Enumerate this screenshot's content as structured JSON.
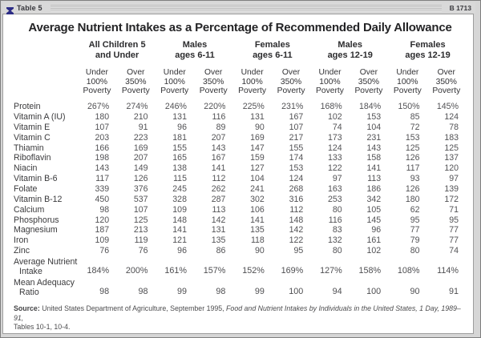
{
  "window": {
    "tab_label": "Table 5",
    "page_ref": "B 1713",
    "logo_color": "#2d2d86"
  },
  "title": "Average Nutrient Intakes as a Percentage of Recommended Daily Allowance",
  "table": {
    "groups": [
      {
        "line1": "All Children 5",
        "line2": "and Under"
      },
      {
        "line1": "Males",
        "line2": "ages 6-11"
      },
      {
        "line1": "Females",
        "line2": "ages 6-11"
      },
      {
        "line1": "Males",
        "line2": "ages 12-19"
      },
      {
        "line1": "Females",
        "line2": "ages 12-19"
      }
    ],
    "subheaders": {
      "under": [
        "Under",
        "100%",
        "Poverty"
      ],
      "over": [
        "Over",
        "350%",
        "Poverty"
      ]
    },
    "rows": [
      {
        "label": "Protein",
        "values": [
          "267%",
          "274%",
          "246%",
          "220%",
          "225%",
          "231%",
          "168%",
          "184%",
          "150%",
          "145%"
        ]
      },
      {
        "label": "Vitamin A (IU)",
        "values": [
          "180",
          "210",
          "131",
          "116",
          "131",
          "167",
          "102",
          "153",
          "85",
          "124"
        ]
      },
      {
        "label": "Vitamin E",
        "values": [
          "107",
          "91",
          "96",
          "89",
          "90",
          "107",
          "74",
          "104",
          "72",
          "78"
        ]
      },
      {
        "label": "Vitamin C",
        "values": [
          "203",
          "223",
          "181",
          "207",
          "169",
          "217",
          "173",
          "231",
          "153",
          "183"
        ]
      },
      {
        "label": "Thiamin",
        "values": [
          "166",
          "169",
          "155",
          "143",
          "147",
          "155",
          "124",
          "143",
          "125",
          "125"
        ]
      },
      {
        "label": "Riboflavin",
        "values": [
          "198",
          "207",
          "165",
          "167",
          "159",
          "174",
          "133",
          "158",
          "126",
          "137"
        ]
      },
      {
        "label": "Niacin",
        "values": [
          "143",
          "149",
          "138",
          "141",
          "127",
          "153",
          "122",
          "141",
          "117",
          "120"
        ]
      },
      {
        "label": "Vitamin B-6",
        "values": [
          "117",
          "126",
          "115",
          "112",
          "104",
          "124",
          "97",
          "113",
          "93",
          "97"
        ]
      },
      {
        "label": "Folate",
        "values": [
          "339",
          "376",
          "245",
          "262",
          "241",
          "268",
          "163",
          "186",
          "126",
          "139"
        ]
      },
      {
        "label": "Vitamin B-12",
        "values": [
          "450",
          "537",
          "328",
          "287",
          "302",
          "316",
          "253",
          "342",
          "180",
          "172"
        ]
      },
      {
        "label": "Calcium",
        "values": [
          "98",
          "107",
          "109",
          "113",
          "106",
          "112",
          "80",
          "105",
          "62",
          "71"
        ]
      },
      {
        "label": "Phosphorus",
        "values": [
          "120",
          "125",
          "148",
          "142",
          "141",
          "148",
          "116",
          "145",
          "95",
          "95"
        ]
      },
      {
        "label": "Magnesium",
        "values": [
          "187",
          "213",
          "141",
          "131",
          "135",
          "142",
          "83",
          "96",
          "77",
          "77"
        ]
      },
      {
        "label": "Iron",
        "values": [
          "109",
          "119",
          "121",
          "135",
          "118",
          "122",
          "132",
          "161",
          "79",
          "77"
        ]
      },
      {
        "label": "Zinc",
        "values": [
          "76",
          "76",
          "96",
          "86",
          "90",
          "95",
          "80",
          "102",
          "80",
          "74"
        ]
      }
    ],
    "summary": [
      {
        "line1": "Average Nutrient",
        "line2": "Intake",
        "values": [
          "184%",
          "200%",
          "161%",
          "157%",
          "152%",
          "169%",
          "127%",
          "158%",
          "108%",
          "114%"
        ]
      },
      {
        "line1": "Mean Adequacy",
        "line2": "Ratio",
        "values": [
          "98",
          "98",
          "99",
          "98",
          "99",
          "100",
          "94",
          "100",
          "90",
          "91"
        ]
      }
    ]
  },
  "source": {
    "prefix": "Source:",
    "seg1": " United States Department of Agriculture, September 1995, ",
    "italic": "Food and Nutrient Intakes by Individuals in the United States, 1 Day, 1989–91,",
    "line2": "Tables 10-1, 10-4."
  }
}
